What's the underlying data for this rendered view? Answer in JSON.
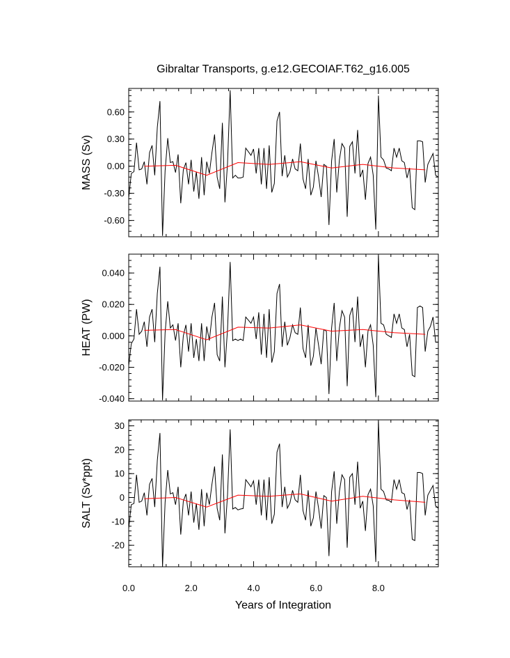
{
  "chart_data": {
    "type": "line",
    "title": "Gibraltar Transports, g.e12.GECOIAF.T62_g16.005",
    "xlabel": "Years of Integration",
    "xlim": [
      0,
      9.92
    ],
    "xticks": [
      0,
      2,
      4,
      6,
      8
    ],
    "xtick_labels": [
      "0.0",
      "2.0",
      "4.0",
      "6.0",
      "8.0"
    ],
    "colors": {
      "monthly": "#000000",
      "annual": "#ff0000"
    },
    "panels": [
      {
        "ylabel": "MASS (Sv)",
        "ylim": [
          -0.78,
          0.86
        ],
        "yticks": [
          0.6,
          0.3,
          0.0,
          -0.3,
          -0.6
        ],
        "ytick_labels": [
          "0.60",
          "0.30",
          "0.00",
          "-0.30",
          "-0.60"
        ],
        "series": [
          {
            "key": "monthly",
            "x_start": 0.0,
            "x_step": 0.08333,
            "values": [
              -0.35,
              -0.08,
              -0.06,
              0.26,
              -0.04,
              -0.03,
              0.05,
              -0.2,
              0.15,
              0.23,
              -0.1,
              0.43,
              0.72,
              -0.77,
              -0.05,
              0.31,
              0.04,
              0.05,
              -0.07,
              0.13,
              -0.41,
              -0.04,
              0.04,
              -0.2,
              0.07,
              -0.28,
              -0.06,
              -0.36,
              0.1,
              -0.32,
              0.05,
              -0.08,
              0.15,
              0.35,
              -0.12,
              -0.25,
              0.48,
              -0.4,
              0.03,
              0.84,
              -0.13,
              -0.1,
              -0.13,
              -0.13,
              -0.12,
              0.2,
              0.16,
              0.12,
              0.19,
              -0.08,
              0.2,
              -0.2,
              0.2,
              -0.25,
              0.23,
              -0.29,
              -0.19,
              0.5,
              0.6,
              -0.11,
              0.12,
              -0.12,
              -0.06,
              0.08,
              -0.03,
              -0.05,
              0.25,
              -0.14,
              -0.25,
              0.08,
              -0.32,
              -0.23,
              0.06,
              -0.12,
              -0.34,
              0.02,
              0.0,
              -0.65,
              0.06,
              0.3,
              -0.29,
              0.07,
              0.25,
              0.2,
              -0.56,
              0.22,
              0.27,
              -0.08,
              0.4,
              -0.12,
              -0.04,
              -0.37,
              0.03,
              0.1,
              -0.1,
              -0.7,
              0.78,
              0.1,
              0.07,
              -0.02,
              -0.03,
              -0.05,
              0.2,
              0.1,
              0.2,
              0.06,
              0.04,
              -0.13,
              -0.02,
              -0.46,
              -0.48,
              0.28,
              0.28,
              0.27,
              -0.18,
              0.02,
              0.08,
              0.14,
              -0.1,
              -0.12
            ]
          },
          {
            "key": "annual",
            "x": [
              0.5,
              1.5,
              2.5,
              3.5,
              4.5,
              5.5,
              6.5,
              7.5,
              8.5,
              9.5
            ],
            "values": [
              0.0,
              0.01,
              -0.1,
              0.04,
              0.02,
              0.05,
              -0.02,
              0.02,
              -0.02,
              -0.04
            ]
          }
        ]
      },
      {
        "ylabel": "HEAT (PW)",
        "ylim": [
          -0.0415,
          0.052
        ],
        "yticks": [
          0.04,
          0.02,
          0.0,
          -0.02,
          -0.04
        ],
        "ytick_labels": [
          "0.040",
          "0.020",
          "0.000",
          "-0.020",
          "-0.040"
        ],
        "series": [
          {
            "key": "monthly",
            "x_start": 0.0,
            "x_step": 0.08333,
            "values": [
              -0.019,
              -0.005,
              -0.002,
              0.017,
              0.001,
              0.003,
              0.009,
              -0.007,
              0.012,
              0.017,
              -0.004,
              0.027,
              0.044,
              -0.041,
              0.002,
              0.022,
              0.005,
              0.007,
              -0.003,
              0.008,
              -0.02,
              0.0,
              0.007,
              -0.01,
              0.008,
              -0.014,
              -0.002,
              -0.016,
              0.008,
              -0.016,
              0.006,
              -0.003,
              0.012,
              0.021,
              -0.012,
              -0.016,
              0.025,
              -0.02,
              0.004,
              0.047,
              -0.003,
              -0.002,
              -0.003,
              -0.002,
              -0.003,
              0.012,
              0.01,
              0.008,
              0.012,
              -0.002,
              0.015,
              -0.012,
              0.014,
              -0.014,
              0.017,
              -0.017,
              -0.01,
              0.027,
              0.033,
              -0.007,
              0.009,
              -0.006,
              -0.001,
              0.007,
              0.002,
              0.001,
              0.018,
              -0.008,
              -0.014,
              0.007,
              -0.019,
              -0.013,
              0.005,
              -0.006,
              -0.018,
              0.004,
              0.003,
              -0.037,
              0.005,
              0.021,
              -0.016,
              0.005,
              0.016,
              0.012,
              -0.032,
              0.013,
              0.018,
              -0.004,
              0.025,
              -0.007,
              0.001,
              -0.02,
              0.003,
              0.007,
              -0.006,
              -0.039,
              0.051,
              0.008,
              0.007,
              0.001,
              0.0,
              -0.001,
              0.014,
              0.008,
              0.014,
              0.005,
              0.004,
              -0.007,
              0.001,
              -0.025,
              -0.026,
              0.018,
              0.019,
              0.018,
              -0.01,
              0.003,
              0.006,
              0.012,
              -0.004,
              -0.004
            ]
          },
          {
            "key": "annual",
            "x": [
              0.5,
              1.5,
              2.5,
              3.5,
              4.5,
              5.5,
              6.5,
              7.5,
              8.5,
              9.5
            ],
            "values": [
              0.0035,
              0.004,
              -0.0025,
              0.0055,
              0.005,
              0.007,
              0.003,
              0.004,
              0.002,
              0.001
            ]
          }
        ]
      },
      {
        "ylabel": "SALT (Sv*ppt)",
        "ylim": [
          -29,
          32.5
        ],
        "yticks": [
          30,
          20,
          10,
          0,
          -10,
          -20
        ],
        "ytick_labels": [
          "30",
          "20",
          "10",
          "0",
          "-10",
          "-20"
        ],
        "series": [
          {
            "key": "monthly",
            "x_start": 0.0,
            "x_step": 0.08333,
            "values": [
              -13,
              -3,
              -2.5,
              9.5,
              -2,
              -1.5,
              2,
              -7.5,
              5.5,
              8,
              -4,
              15.5,
              27,
              -29,
              -2,
              11.5,
              1.5,
              2,
              -3,
              4.5,
              -15.5,
              -1.5,
              1.5,
              -7.5,
              2.5,
              -10.5,
              -2.5,
              -13.5,
              3.5,
              -12,
              2,
              -3,
              5.5,
              13,
              -4.5,
              -9.5,
              18,
              -15,
              1,
              28.5,
              -4.8,
              -4.2,
              -5.2,
              -4.8,
              -4.6,
              7.5,
              6,
              4.5,
              7,
              -3,
              7.5,
              -7.5,
              7.5,
              -9.5,
              8.5,
              -11,
              -7,
              19,
              22.5,
              -4,
              4.5,
              -4.5,
              -2.2,
              3,
              -1,
              -2,
              9.5,
              -5.5,
              -9.5,
              3,
              -12,
              -8.5,
              2.5,
              -4.5,
              -13,
              0.8,
              0,
              -24.5,
              2.5,
              11,
              -11,
              2.5,
              9.5,
              7.5,
              -21,
              8.5,
              10,
              -3,
              15,
              -4.5,
              -1.5,
              -14,
              1.2,
              3.5,
              -3.5,
              -27,
              32,
              3.5,
              2.5,
              -1,
              -1.2,
              -2,
              7.5,
              3.5,
              7.5,
              2,
              1.5,
              -5,
              -1,
              -17.5,
              -18,
              10.5,
              10.5,
              10,
              -7.5,
              1,
              3,
              5,
              -3.5,
              -4.5
            ]
          },
          {
            "key": "annual",
            "x": [
              0.5,
              1.5,
              2.5,
              3.5,
              4.5,
              5.5,
              6.5,
              7.5,
              8.5,
              9.5
            ],
            "values": [
              -0.5,
              0.0,
              -4,
              1,
              0.5,
              1.5,
              -1.5,
              0.5,
              -1,
              -2
            ]
          }
        ]
      }
    ]
  }
}
